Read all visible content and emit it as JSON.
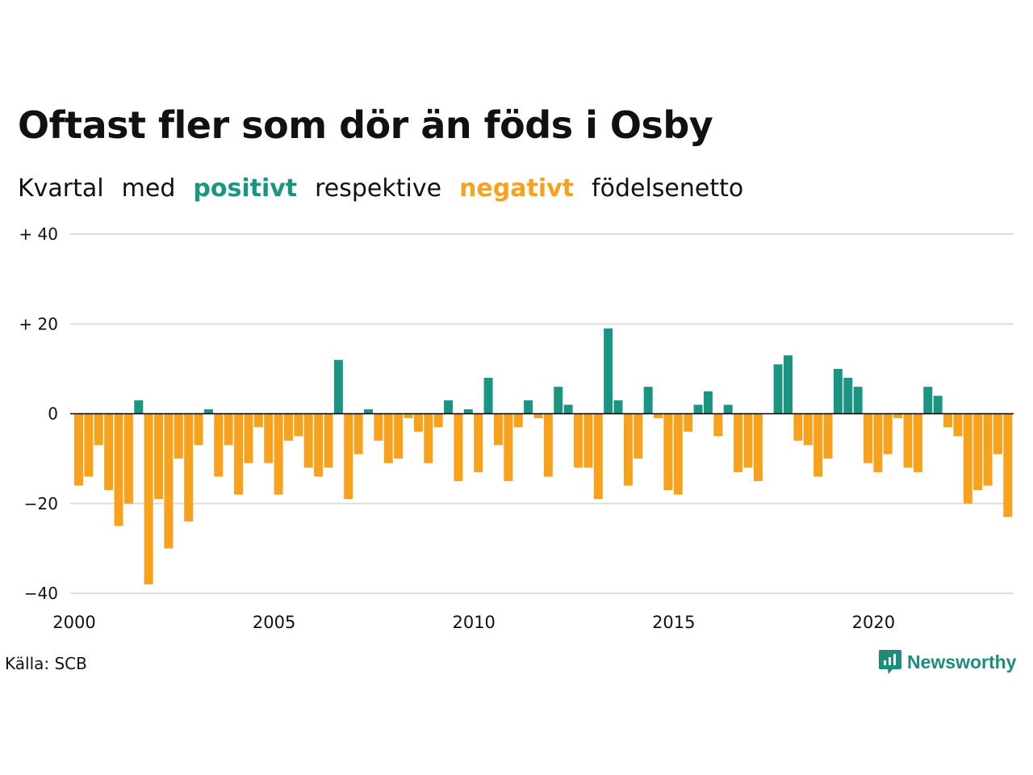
{
  "title": "Oftast fler som dör än föds i Osby",
  "subtitle": {
    "w1": "Kvartal",
    "w2": "med",
    "positive": "positivt",
    "w3": "respektive",
    "negative": "negativt",
    "w4": "födelsenetto"
  },
  "source": "Källa: SCB",
  "brand": "Newsworthy",
  "colors": {
    "positive": "#1a9582",
    "negative": "#f8a11c",
    "grid": "#dddddd",
    "zero": "#000000"
  },
  "chart_data": {
    "type": "bar",
    "x_start": "2000 Q1",
    "x_ticks": [
      "2000",
      "2005",
      "2010",
      "2015",
      "2020"
    ],
    "y_ticks": [
      "+ 40",
      "+ 20",
      "0",
      "−20",
      "−40"
    ],
    "y_tick_values": [
      40,
      20,
      0,
      -20,
      -40
    ],
    "ylim": [
      -40,
      40
    ],
    "grid": true,
    "values": [
      -16,
      -14,
      -7,
      -17,
      -25,
      -20,
      3,
      -38,
      -19,
      -30,
      -10,
      -24,
      -7,
      1,
      -14,
      -7,
      -18,
      -11,
      -3,
      -11,
      -18,
      -6,
      -5,
      -12,
      -14,
      -12,
      12,
      -19,
      -9,
      1,
      -6,
      -11,
      -10,
      -1,
      -4,
      -11,
      -3,
      3,
      -15,
      1,
      -13,
      8,
      -7,
      -15,
      -3,
      3,
      -1,
      -14,
      6,
      2,
      -12,
      -12,
      -19,
      19,
      3,
      -16,
      -10,
      6,
      -1,
      -17,
      -18,
      -4,
      2,
      5,
      -5,
      2,
      -13,
      -12,
      -15,
      0,
      11,
      13,
      -6,
      -7,
      -14,
      -10,
      10,
      8,
      6,
      -11,
      -13,
      -9,
      -1,
      -12,
      -13,
      6,
      4,
      -3,
      -5,
      -20,
      -17,
      -16,
      -9,
      -23
    ]
  }
}
